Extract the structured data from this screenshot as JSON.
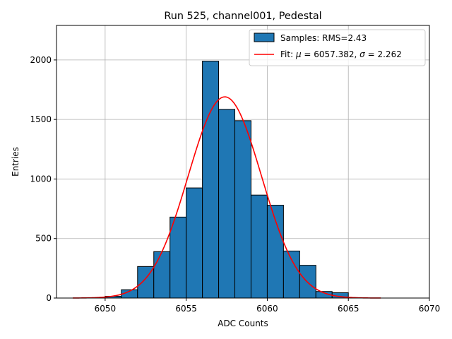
{
  "chart_data": {
    "type": "bar",
    "title": "Run 525, channel001, Pedestal",
    "xlabel": "ADC Counts",
    "ylabel": "Entries",
    "xlim": [
      6047,
      6070
    ],
    "ylim": [
      0,
      2290
    ],
    "grid": true,
    "legend_position": "top-right",
    "xticks": [
      6050,
      6055,
      6060,
      6065,
      6070
    ],
    "yticks": [
      0,
      500,
      1000,
      1500,
      2000
    ],
    "histogram": {
      "name": "Samples: RMS=2.43",
      "bin_edges": [
        6050,
        6051,
        6052,
        6053,
        6054,
        6055,
        6056,
        6057,
        6058,
        6059,
        6060,
        6061,
        6062,
        6063,
        6064,
        6065
      ],
      "values": [
        15,
        70,
        265,
        390,
        680,
        925,
        1990,
        1585,
        1490,
        865,
        780,
        395,
        275,
        55,
        45
      ],
      "color": "#1f77b4",
      "edge_color": "#000000"
    },
    "fit": {
      "name_prefix": "Fit: ",
      "name_mu": "μ",
      "name_mid": " = 6057.382, ",
      "name_sigma": "σ",
      "name_suffix": " = 2.262",
      "mu": 6057.382,
      "sigma": 2.262,
      "amplitude": 1690,
      "x_range": [
        6048,
        6067
      ],
      "color": "#ff0000"
    }
  }
}
